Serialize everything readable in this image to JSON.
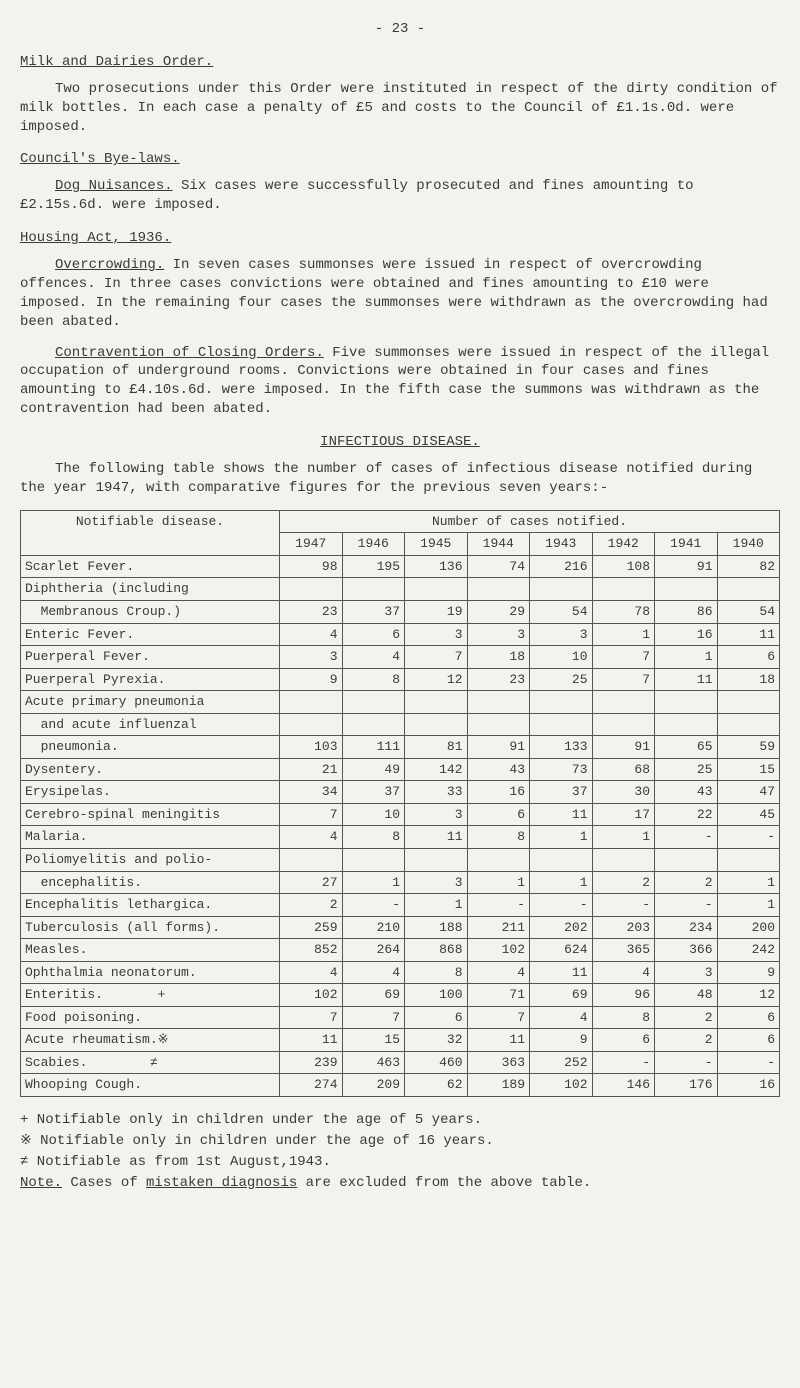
{
  "page_number": "- 23 -",
  "section1": {
    "heading": "Milk and Dairies Order.",
    "para": "Two prosecutions under this Order were instituted in respect of the dirty condition of milk bottles.  In each case a penalty of £5 and costs to the Council of £1.1s.0d. were imposed."
  },
  "section2": {
    "heading": "Council's Bye-laws.",
    "runin": "Dog Nuisances.",
    "para": "  Six cases were successfully prosecuted and fines amounting to £2.15s.6d. were imposed."
  },
  "section3": {
    "heading": "Housing Act, 1936.",
    "p1_runin": "Overcrowding.",
    "p1": "  In seven cases summonses were issued in respect of overcrowding offences.  In three cases convictions were obtained and fines amounting to £10 were imposed.  In the remaining four cases the summonses were withdrawn as the overcrowding had been abated.",
    "p2_runin": "Contravention of Closing Orders.",
    "p2": "  Five summonses were issued in respect of the illegal occupation of underground rooms.  Convictions were obtained in four cases and fines amounting to £4.10s.6d. were imposed.  In the fifth case the summons was withdrawn as the contravention had been abated."
  },
  "section4": {
    "heading": "INFECTIOUS DISEASE.",
    "para": "The following table shows the number of cases of infectious disease notified during the year 1947, with comparative figures for the previous seven years:-"
  },
  "table": {
    "col1_label": "Notifiable disease.",
    "span_label": "Number of cases notified.",
    "years": [
      "1947",
      "1946",
      "1945",
      "1944",
      "1943",
      "1942",
      "1941",
      "1940"
    ],
    "rows": [
      {
        "label": "Scarlet Fever.",
        "v": [
          "98",
          "195",
          "136",
          "74",
          "216",
          "108",
          "91",
          "82"
        ]
      },
      {
        "label": "Diphtheria (including",
        "v": [
          "",
          "",
          "",
          "",
          "",
          "",
          "",
          ""
        ]
      },
      {
        "label": "  Membranous Croup.)",
        "v": [
          "23",
          "37",
          "19",
          "29",
          "54",
          "78",
          "86",
          "54"
        ]
      },
      {
        "label": "Enteric Fever.",
        "v": [
          "4",
          "6",
          "3",
          "3",
          "3",
          "1",
          "16",
          "11"
        ]
      },
      {
        "label": "Puerperal Fever.",
        "v": [
          "3",
          "4",
          "7",
          "18",
          "10",
          "7",
          "1",
          "6"
        ]
      },
      {
        "label": "Puerperal Pyrexia.",
        "v": [
          "9",
          "8",
          "12",
          "23",
          "25",
          "7",
          "11",
          "18"
        ]
      },
      {
        "label": "Acute primary pneumonia",
        "v": [
          "",
          "",
          "",
          "",
          "",
          "",
          "",
          ""
        ]
      },
      {
        "label": "  and acute influenzal",
        "v": [
          "",
          "",
          "",
          "",
          "",
          "",
          "",
          ""
        ]
      },
      {
        "label": "  pneumonia.",
        "v": [
          "103",
          "111",
          "81",
          "91",
          "133",
          "91",
          "65",
          "59"
        ]
      },
      {
        "label": "Dysentery.",
        "v": [
          "21",
          "49",
          "142",
          "43",
          "73",
          "68",
          "25",
          "15"
        ]
      },
      {
        "label": "Erysipelas.",
        "v": [
          "34",
          "37",
          "33",
          "16",
          "37",
          "30",
          "43",
          "47"
        ]
      },
      {
        "label": "Cerebro-spinal meningitis",
        "v": [
          "7",
          "10",
          "3",
          "6",
          "11",
          "17",
          "22",
          "45"
        ]
      },
      {
        "label": "Malaria.",
        "v": [
          "4",
          "8",
          "11",
          "8",
          "1",
          "1",
          "-",
          "-"
        ]
      },
      {
        "label": "Poliomyelitis and polio-",
        "v": [
          "",
          "",
          "",
          "",
          "",
          "",
          "",
          ""
        ]
      },
      {
        "label": "  encephalitis.",
        "v": [
          "27",
          "1",
          "3",
          "1",
          "1",
          "2",
          "2",
          "1"
        ]
      },
      {
        "label": "Encephalitis lethargica.",
        "v": [
          "2",
          "-",
          "1",
          "-",
          "-",
          "-",
          "-",
          "1"
        ]
      },
      {
        "label": "Tuberculosis (all forms).",
        "v": [
          "259",
          "210",
          "188",
          "211",
          "202",
          "203",
          "234",
          "200"
        ]
      },
      {
        "label": "Measles.",
        "v": [
          "852",
          "264",
          "868",
          "102",
          "624",
          "365",
          "366",
          "242"
        ]
      },
      {
        "label": "Ophthalmia neonatorum.",
        "v": [
          "4",
          "4",
          "8",
          "4",
          "11",
          "4",
          "3",
          "9"
        ]
      },
      {
        "label": "Enteritis.       +",
        "v": [
          "102",
          "69",
          "100",
          "71",
          "69",
          "96",
          "48",
          "12"
        ]
      },
      {
        "label": "Food poisoning.",
        "v": [
          "7",
          "7",
          "6",
          "7",
          "4",
          "8",
          "2",
          "6"
        ]
      },
      {
        "label": "Acute rheumatism.※",
        "v": [
          "11",
          "15",
          "32",
          "11",
          "9",
          "6",
          "2",
          "6"
        ]
      },
      {
        "label": "Scabies.        ≠",
        "v": [
          "239",
          "463",
          "460",
          "363",
          "252",
          "-",
          "-",
          "-"
        ]
      },
      {
        "label": "Whooping Cough.",
        "v": [
          "274",
          "209",
          "62",
          "189",
          "102",
          "146",
          "176",
          "16"
        ]
      }
    ]
  },
  "footnotes": {
    "f1": "+ Notifiable only in children under the age of 5 years.",
    "f2": "※ Notifiable only in children under the age of 16 years.",
    "f3": "≠ Notifiable as from 1st August,1943.",
    "note_label": "Note.",
    "note_text": "  Cases of ",
    "note_underline": "mistaken diagnosis",
    "note_tail": " are excluded from the above table."
  }
}
